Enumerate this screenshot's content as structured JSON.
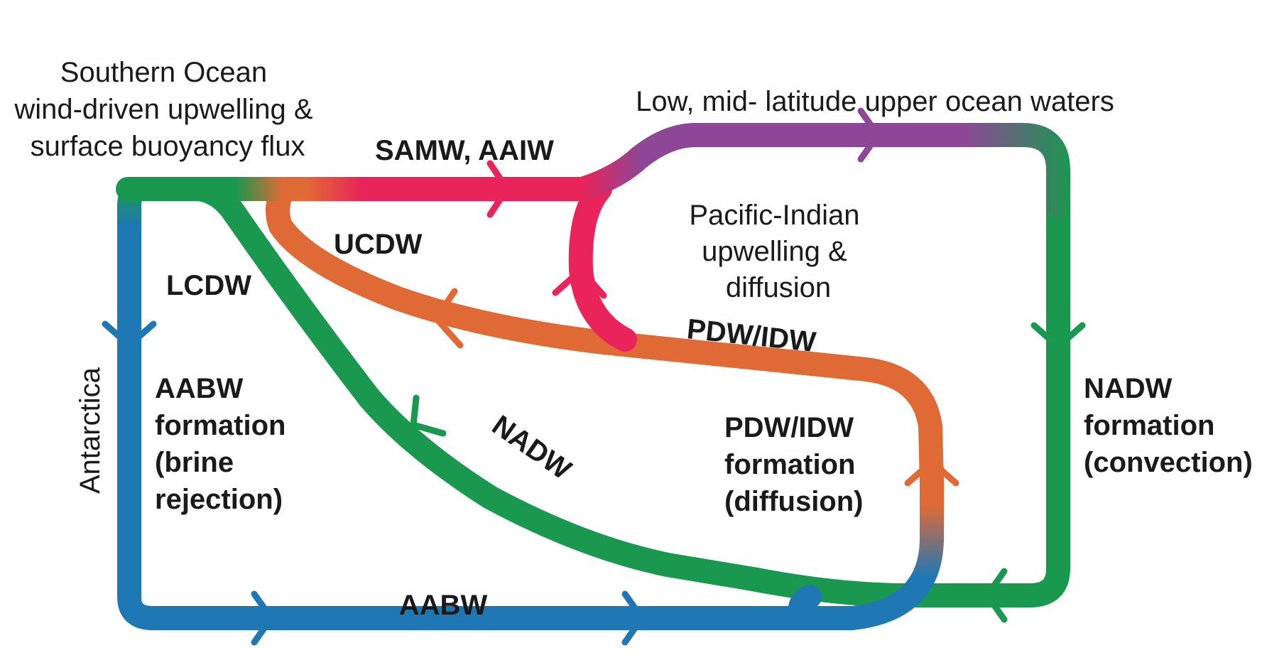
{
  "labels": {
    "southern_ocean": [
      "Southern Ocean",
      "wind-driven upwelling &",
      "surface buoyancy flux"
    ],
    "low_mid_lat": "Low, mid- latitude upper ocean waters",
    "samw_aaiw": "SAMW, AAIW",
    "ucdw": "UCDW",
    "lcdw": "LCDW",
    "pacific_indian": [
      "Pacific-Indian",
      "upwelling &",
      "diffusion"
    ],
    "pdw_idw_flow": "PDW/IDW",
    "antarctica": "Antarctica",
    "aabw_formation": [
      "AABW",
      "formation",
      "(brine",
      "rejection)"
    ],
    "nadw_flow": "NADW",
    "pdw_idw_formation": [
      "PDW/IDW",
      "formation",
      "(diffusion)"
    ],
    "nadw_formation": [
      "NADW",
      "formation",
      "(convection)"
    ],
    "aabw_flow": "AABW"
  },
  "colors": {
    "blue": "#1f78b4",
    "green": "#1a9850",
    "orange": "#e06a35",
    "red": "#e8245a",
    "purple": "#8e4796"
  }
}
